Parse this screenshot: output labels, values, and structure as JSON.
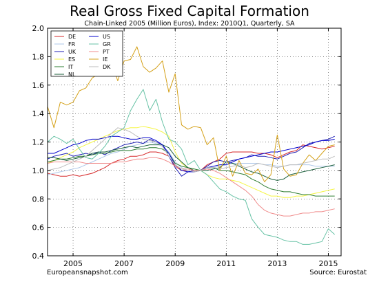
{
  "title": "Real Gross Fixed Capital Formation",
  "subtitle": "Chain-Linked 2005 (Million Euros), Index: 2010Q1, Quarterly, SA",
  "footer_left": "Europeansnapshot.com",
  "footer_right": "Source: Eurostat",
  "chart_data": {
    "type": "line",
    "xlim": [
      2004.0,
      2015.5
    ],
    "ylim": [
      0.4,
      2.0
    ],
    "xticks": [
      2005,
      2007,
      2009,
      2011,
      2013,
      2015
    ],
    "yticks": [
      0.4,
      0.6,
      0.8,
      1.0,
      1.2,
      1.4,
      1.6,
      1.8,
      2.0
    ],
    "ytick_labels": [
      "0.4",
      "0.6",
      "0.8",
      "1.0",
      "1.2",
      "1.4",
      "1.6",
      "1.8",
      "2.0"
    ],
    "grid": true,
    "legend_position": "top-left",
    "x": [
      2004.0,
      2004.25,
      2004.5,
      2004.75,
      2005.0,
      2005.25,
      2005.5,
      2005.75,
      2006.0,
      2006.25,
      2006.5,
      2006.75,
      2007.0,
      2007.25,
      2007.5,
      2007.75,
      2008.0,
      2008.25,
      2008.5,
      2008.75,
      2009.0,
      2009.25,
      2009.5,
      2009.75,
      2010.0,
      2010.25,
      2010.5,
      2010.75,
      2011.0,
      2011.25,
      2011.5,
      2011.75,
      2012.0,
      2012.25,
      2012.5,
      2012.75,
      2013.0,
      2013.25,
      2013.5,
      2013.75,
      2014.0,
      2014.25,
      2014.5,
      2014.75,
      2015.0,
      2015.25
    ],
    "series": [
      {
        "name": "DE",
        "color": "#d62728",
        "values": [
          0.98,
          0.97,
          0.96,
          0.96,
          0.97,
          0.96,
          0.97,
          0.98,
          1.0,
          1.02,
          1.05,
          1.07,
          1.08,
          1.1,
          1.1,
          1.11,
          1.13,
          1.13,
          1.12,
          1.1,
          1.03,
          1.0,
          1.0,
          0.99,
          1.0,
          1.04,
          1.06,
          1.08,
          1.12,
          1.13,
          1.13,
          1.13,
          1.13,
          1.12,
          1.12,
          1.11,
          1.09,
          1.11,
          1.13,
          1.14,
          1.18,
          1.17,
          1.16,
          1.15,
          1.16,
          1.17
        ]
      },
      {
        "name": "FR",
        "color": "#aec7e8",
        "values": [
          0.97,
          0.98,
          0.99,
          1.0,
          1.01,
          1.02,
          1.04,
          1.06,
          1.08,
          1.1,
          1.12,
          1.13,
          1.15,
          1.17,
          1.18,
          1.19,
          1.2,
          1.19,
          1.17,
          1.13,
          1.06,
          1.02,
          1.0,
          0.99,
          1.0,
          1.01,
          1.02,
          1.03,
          1.04,
          1.05,
          1.05,
          1.05,
          1.05,
          1.05,
          1.04,
          1.04,
          1.03,
          1.03,
          1.04,
          1.04,
          1.04,
          1.04,
          1.03,
          1.03,
          1.03,
          1.03
        ]
      },
      {
        "name": "UK",
        "color": "#1f1fb4",
        "values": [
          1.08,
          1.1,
          1.11,
          1.12,
          1.1,
          1.11,
          1.12,
          1.11,
          1.13,
          1.11,
          1.14,
          1.16,
          1.18,
          1.19,
          1.2,
          1.19,
          1.22,
          1.2,
          1.18,
          1.1,
          1.02,
          0.96,
          0.99,
          1.0,
          1.0,
          1.03,
          1.06,
          1.07,
          1.06,
          1.07,
          1.08,
          1.09,
          1.11,
          1.1,
          1.1,
          1.09,
          1.08,
          1.1,
          1.12,
          1.13,
          1.16,
          1.19,
          1.2,
          1.21,
          1.22,
          1.24
        ]
      },
      {
        "name": "ES",
        "color": "#f5f542",
        "values": [
          1.05,
          1.07,
          1.09,
          1.11,
          1.13,
          1.16,
          1.18,
          1.2,
          1.22,
          1.24,
          1.26,
          1.28,
          1.29,
          1.3,
          1.3,
          1.31,
          1.3,
          1.29,
          1.27,
          1.24,
          1.13,
          1.05,
          1.02,
          1.0,
          1.0,
          0.97,
          0.95,
          0.94,
          0.94,
          0.93,
          0.92,
          0.9,
          0.88,
          0.86,
          0.84,
          0.82,
          0.82,
          0.81,
          0.81,
          0.82,
          0.82,
          0.83,
          0.84,
          0.85,
          0.86,
          0.87
        ]
      },
      {
        "name": "IT",
        "color": "#2e7d32",
        "values": [
          1.06,
          1.07,
          1.08,
          1.08,
          1.09,
          1.1,
          1.1,
          1.11,
          1.12,
          1.12,
          1.13,
          1.14,
          1.14,
          1.14,
          1.15,
          1.15,
          1.16,
          1.16,
          1.15,
          1.12,
          1.05,
          1.03,
          1.02,
          1.01,
          1.0,
          1.02,
          1.02,
          1.0,
          1.0,
          0.99,
          0.98,
          0.97,
          0.94,
          0.92,
          0.89,
          0.87,
          0.86,
          0.85,
          0.85,
          0.84,
          0.83,
          0.83,
          0.82,
          0.82,
          0.82,
          0.82
        ]
      },
      {
        "name": "NL",
        "color": "#1a5e3a",
        "values": [
          1.09,
          1.09,
          1.08,
          1.07,
          1.08,
          1.09,
          1.1,
          1.12,
          1.13,
          1.13,
          1.14,
          1.15,
          1.16,
          1.17,
          1.16,
          1.17,
          1.18,
          1.18,
          1.18,
          1.16,
          1.1,
          1.06,
          1.02,
          1.0,
          1.0,
          1.0,
          1.01,
          1.02,
          1.06,
          1.05,
          1.03,
          1.01,
          0.99,
          0.98,
          0.96,
          0.94,
          0.93,
          0.94,
          0.97,
          0.98,
          0.99,
          1.0,
          1.01,
          1.02,
          1.03,
          1.04
        ]
      },
      {
        "name": "US",
        "color": "#0000cd",
        "values": [
          1.12,
          1.12,
          1.14,
          1.16,
          1.18,
          1.19,
          1.21,
          1.22,
          1.22,
          1.23,
          1.24,
          1.24,
          1.23,
          1.22,
          1.22,
          1.23,
          1.23,
          1.21,
          1.18,
          1.12,
          1.04,
          1.0,
          0.99,
          0.99,
          1.0,
          1.02,
          1.03,
          1.04,
          1.04,
          1.06,
          1.08,
          1.09,
          1.1,
          1.11,
          1.12,
          1.13,
          1.13,
          1.14,
          1.15,
          1.16,
          1.17,
          1.18,
          1.2,
          1.21,
          1.21,
          1.22
        ]
      },
      {
        "name": "GR",
        "color": "#66c2a5",
        "values": [
          1.2,
          1.24,
          1.22,
          1.19,
          1.22,
          1.15,
          1.09,
          1.08,
          1.12,
          1.17,
          1.24,
          1.27,
          1.3,
          1.42,
          1.5,
          1.57,
          1.42,
          1.5,
          1.34,
          1.22,
          1.2,
          1.15,
          1.04,
          1.07,
          1.0,
          0.97,
          0.92,
          0.87,
          0.85,
          0.82,
          0.8,
          0.79,
          0.66,
          0.6,
          0.55,
          0.54,
          0.53,
          0.51,
          0.5,
          0.5,
          0.48,
          0.48,
          0.49,
          0.5,
          0.59,
          0.55
        ]
      },
      {
        "name": "PT",
        "color": "#f08c8c",
        "values": [
          1.05,
          1.06,
          1.06,
          1.06,
          1.06,
          1.06,
          1.05,
          1.05,
          1.05,
          1.05,
          1.05,
          1.06,
          1.06,
          1.07,
          1.08,
          1.08,
          1.09,
          1.09,
          1.08,
          1.06,
          1.03,
          1.01,
          1.01,
          1.0,
          1.0,
          1.01,
          1.0,
          0.98,
          0.95,
          0.92,
          0.89,
          0.86,
          0.82,
          0.76,
          0.72,
          0.7,
          0.69,
          0.68,
          0.68,
          0.69,
          0.7,
          0.7,
          0.71,
          0.71,
          0.72,
          0.73
        ]
      },
      {
        "name": "IE",
        "color": "#d4a017",
        "values": [
          1.45,
          1.3,
          1.48,
          1.46,
          1.48,
          1.56,
          1.58,
          1.65,
          1.68,
          1.72,
          1.76,
          1.63,
          1.77,
          1.78,
          1.87,
          1.73,
          1.69,
          1.72,
          1.77,
          1.55,
          1.68,
          1.32,
          1.29,
          1.31,
          1.3,
          1.18,
          1.23,
          1.0,
          1.1,
          0.96,
          1.07,
          0.98,
          0.97,
          1.01,
          0.92,
          0.97,
          1.25,
          1.01,
          0.96,
          0.97,
          1.05,
          1.11,
          1.07,
          1.12,
          1.17,
          1.18
        ]
      },
      {
        "name": "DK",
        "color": "#bdbdbd",
        "values": [
          1.0,
          1.01,
          1.02,
          1.04,
          1.06,
          1.08,
          1.1,
          1.14,
          1.18,
          1.22,
          1.26,
          1.3,
          1.29,
          1.27,
          1.24,
          1.22,
          1.21,
          1.2,
          1.17,
          1.1,
          1.04,
          1.01,
          1.0,
          0.99,
          1.0,
          1.02,
          1.02,
          1.01,
          1.02,
          1.03,
          1.04,
          1.02,
          1.03,
          1.05,
          1.04,
          1.03,
          1.02,
          1.03,
          1.04,
          1.04,
          1.05,
          1.06,
          1.07,
          1.08,
          1.08,
          1.1
        ]
      }
    ]
  }
}
